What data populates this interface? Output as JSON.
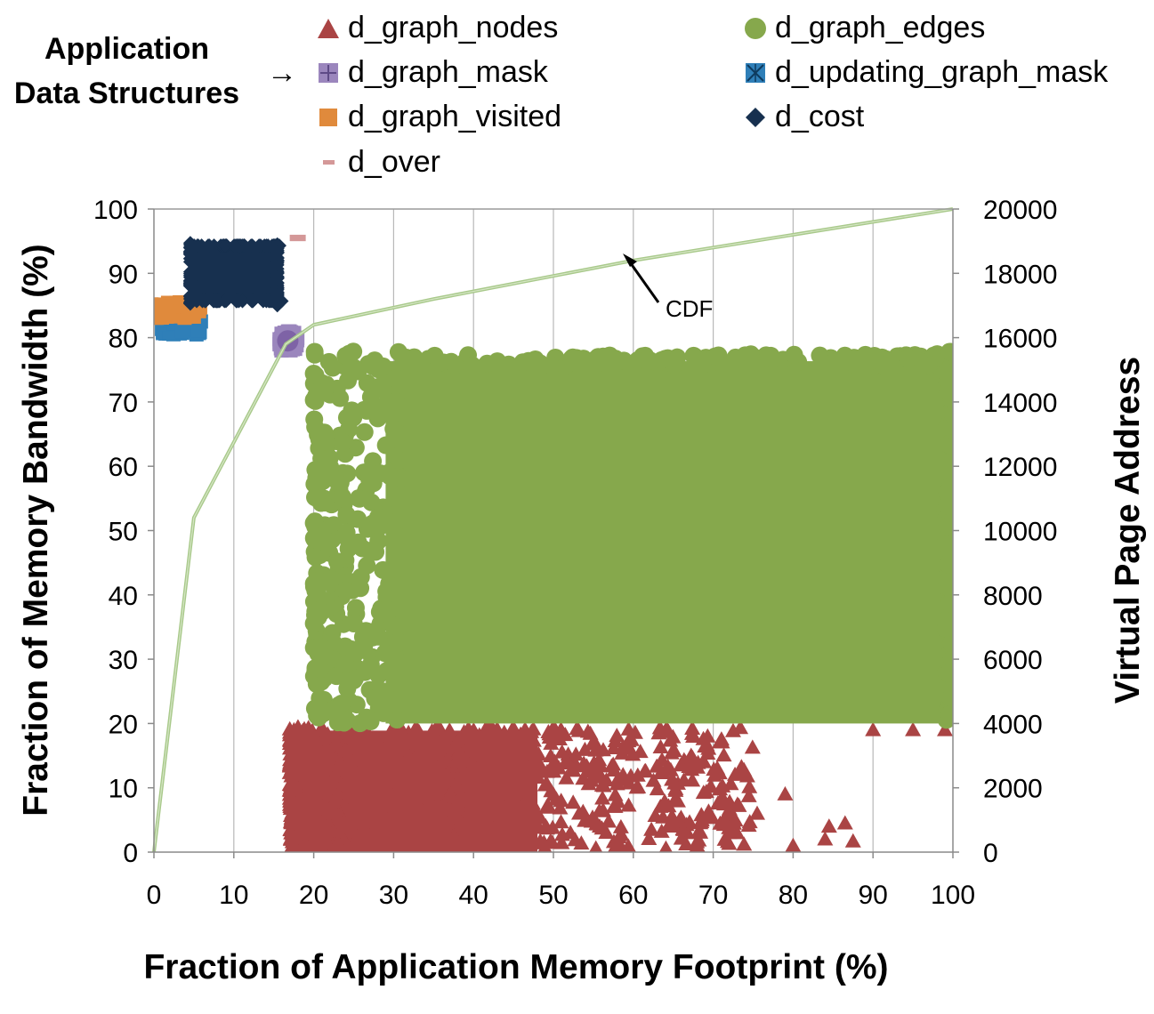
{
  "legend": {
    "title_line1": "Application",
    "title_line2": "Data Structures",
    "arrow": "→",
    "items": [
      {
        "label": "d_graph_nodes",
        "marker": "triangle",
        "color": "#aa4444"
      },
      {
        "label": "d_graph_mask",
        "marker": "square-plus",
        "color": "#9b86bd"
      },
      {
        "label": "d_graph_visited",
        "marker": "square",
        "color": "#e08a3c"
      },
      {
        "label": "d_over",
        "marker": "dash",
        "color": "#d49898"
      },
      {
        "label": "d_graph_edges",
        "marker": "circle",
        "color": "#86a84c"
      },
      {
        "label": "d_updating_graph_mask",
        "marker": "square-x",
        "color": "#2f7fb8"
      },
      {
        "label": "d_cost",
        "marker": "diamond",
        "color": "#17304f"
      }
    ]
  },
  "chart_data": {
    "type": "scatter",
    "xlabel": "Fraction of Application Memory Footprint (%)",
    "ylabel": "Fraction of Memory Bandwidth (%)",
    "y2label": "Virtual Page Address",
    "xlim": [
      0,
      100
    ],
    "ylim": [
      0,
      100
    ],
    "y2lim": [
      0,
      20000
    ],
    "xticks": [
      "0",
      "10",
      "20",
      "30",
      "40",
      "50",
      "60",
      "70",
      "80",
      "90",
      "100"
    ],
    "yticks": [
      "0",
      "10",
      "20",
      "30",
      "40",
      "50",
      "60",
      "70",
      "80",
      "90",
      "100"
    ],
    "y2ticks": [
      "0",
      "2000",
      "4000",
      "6000",
      "8000",
      "10000",
      "12000",
      "14000",
      "16000",
      "18000",
      "20000"
    ],
    "grid": "vertical",
    "cdf": {
      "name": "CDF",
      "color": "#a8c98a",
      "x": [
        0,
        5,
        16.5,
        20,
        35,
        60,
        100
      ],
      "y": [
        0,
        52,
        79,
        82,
        86,
        92,
        100
      ]
    },
    "regions": [
      {
        "name": "d_graph_nodes",
        "marker": "triangle",
        "color": "#aa4444",
        "x_range": [
          17,
          100
        ],
        "y2_range": [
          0,
          4000
        ]
      },
      {
        "name": "d_graph_edges",
        "marker": "circle",
        "color": "#86a84c",
        "x_range": [
          20,
          100
        ],
        "y2_range": [
          4000,
          15600
        ]
      },
      {
        "name": "d_graph_mask",
        "marker": "square-plus",
        "color": "#9b86bd",
        "x_range": [
          15.5,
          18
        ],
        "y2_range": [
          15600,
          16200
        ]
      },
      {
        "name": "d_updating_graph_mask",
        "marker": "square-x",
        "color": "#2f7fb8",
        "x_range": [
          1,
          6
        ],
        "y2_range": [
          16100,
          16600
        ]
      },
      {
        "name": "d_graph_visited",
        "marker": "square",
        "color": "#e08a3c",
        "x_range": [
          -1,
          6
        ],
        "y2_range": [
          16600,
          17100
        ]
      },
      {
        "name": "d_cost",
        "marker": "diamond",
        "color": "#17304f",
        "x_range": [
          4,
          16
        ],
        "y2_range": [
          17000,
          19000
        ]
      },
      {
        "name": "d_over",
        "marker": "dash",
        "color": "#d49898",
        "x_range": [
          17,
          19
        ],
        "y2_range": [
          19000,
          19200
        ]
      }
    ]
  }
}
